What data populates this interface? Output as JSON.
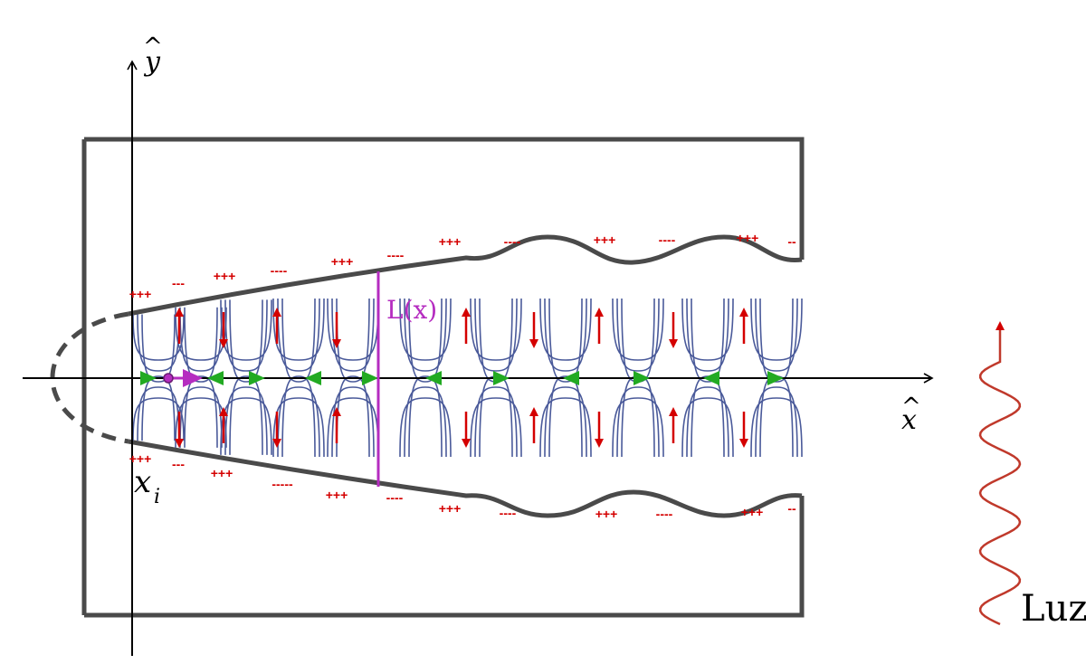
{
  "labels": {
    "y_axis": "y",
    "y_hat": "^",
    "x_axis": "x",
    "x_hat": "^",
    "x_i": "x",
    "x_i_sub": "i",
    "length": "L(x)",
    "light": "Luz"
  },
  "charges": {
    "top": [
      "+++",
      "---",
      "+++",
      "----",
      "+++",
      "----",
      "+++",
      "----",
      "+++",
      "----",
      "+++",
      "--"
    ],
    "bottom": [
      "+++",
      "---",
      "+++",
      "-----",
      "+++",
      "----",
      "+++",
      "----",
      "+++",
      "----",
      "+++",
      "--"
    ]
  },
  "colors": {
    "wall": "#4a4a4a",
    "axis": "#000000",
    "field_lines": "#4a5a9a",
    "charge": "#d40000",
    "flow_arrows": "#22aa22",
    "length_marker": "#b52cc0",
    "light_wave": "#c0392b"
  }
}
